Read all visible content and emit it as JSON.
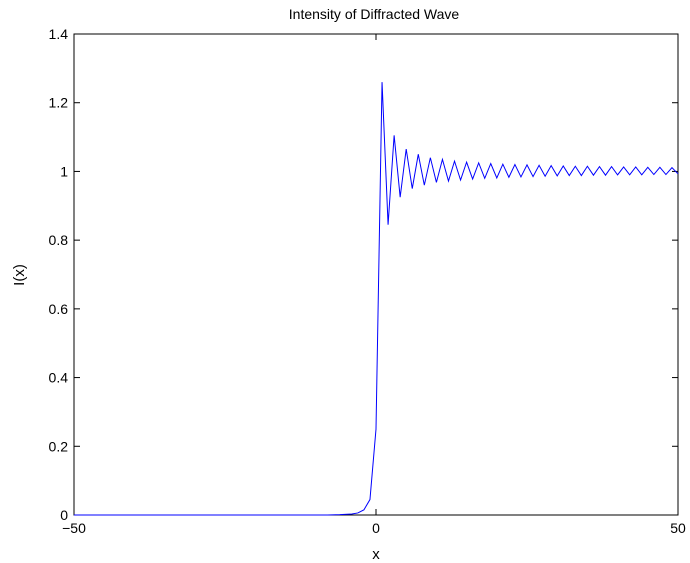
{
  "chart_data": {
    "type": "line",
    "title": "Intensity of Diffracted Wave",
    "xlabel": "x",
    "ylabel": "I(x)",
    "xlim": [
      -50,
      50
    ],
    "ylim": [
      0,
      1.4
    ],
    "x_ticks": [
      -50,
      0,
      50
    ],
    "x_tick_labels": [
      "−50",
      "0",
      "50"
    ],
    "y_ticks": [
      0,
      0.2,
      0.4,
      0.6,
      0.8,
      1,
      1.2,
      1.4
    ],
    "y_tick_labels": [
      "0",
      "0.2",
      "0.4",
      "0.6",
      "0.8",
      "1",
      "1.2",
      "1.4"
    ],
    "grid": false,
    "line_color": "#0000ff",
    "series": [
      {
        "x": [
          -50,
          -48,
          -46,
          -44,
          -42,
          -40,
          -38,
          -36,
          -34,
          -32,
          -30,
          -28,
          -26,
          -24,
          -22,
          -20,
          -18,
          -16,
          -14,
          -12,
          -10,
          -8,
          -6,
          -4,
          -3,
          -2,
          -1,
          0,
          1,
          2,
          3,
          4,
          5,
          6,
          7,
          8,
          9,
          10,
          11,
          12,
          13,
          14,
          15,
          16,
          17,
          18,
          19,
          20,
          21,
          22,
          23,
          24,
          25,
          26,
          27,
          28,
          29,
          30,
          31,
          32,
          33,
          34,
          35,
          36,
          37,
          38,
          39,
          40,
          41,
          42,
          43,
          44,
          45,
          46,
          47,
          48,
          49,
          50
        ],
        "y": [
          0,
          0,
          0,
          0,
          0,
          0,
          0,
          0,
          0,
          0,
          0,
          0,
          0,
          0,
          0,
          0,
          0,
          0,
          0,
          0,
          0,
          0,
          0.001,
          0.003,
          0.006,
          0.015,
          0.045,
          0.25,
          1.26,
          0.845,
          1.105,
          0.925,
          1.065,
          0.95,
          1.05,
          0.96,
          1.04,
          0.968,
          1.035,
          0.972,
          1.03,
          0.975,
          1.027,
          0.978,
          1.025,
          0.98,
          1.023,
          0.981,
          1.021,
          0.983,
          1.02,
          0.984,
          1.019,
          0.985,
          1.018,
          0.986,
          1.017,
          0.987,
          1.016,
          0.988,
          1.015,
          0.988,
          1.015,
          0.989,
          1.014,
          0.989,
          1.014,
          0.99,
          1.013,
          0.99,
          1.013,
          0.99,
          1.012,
          0.991,
          1.012,
          0.991,
          1.011,
          0.993
        ]
      }
    ]
  }
}
